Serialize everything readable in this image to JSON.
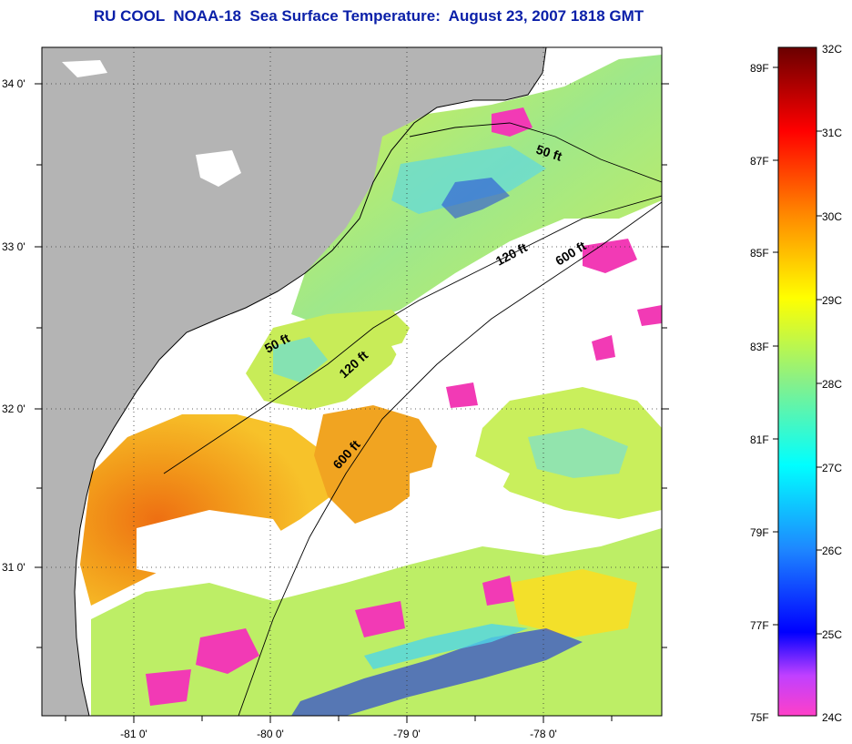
{
  "title": "RU COOL  NOAA-18  Sea Surface Temperature:  August 23, 2007 1818 GMT",
  "map": {
    "lat_ticks": [
      "34 0'",
      "33 0'",
      "32 0'",
      "31 0'"
    ],
    "lon_ticks": [
      "-81 0'",
      "-80 0'",
      "-79 0'",
      "-78 0'"
    ],
    "isobath_labels": [
      "50 ft",
      "120 ft",
      "600 ft",
      "50 ft",
      "120 ft",
      "600 ft"
    ],
    "colors": {
      "land": "#b4b4b4",
      "ocean_cloud": "#ffffff",
      "warm": "#f08a14"
    }
  },
  "colorbar": {
    "celsius_labels": [
      "32C",
      "31C",
      "30C",
      "29C",
      "28C",
      "27C",
      "26C",
      "25C",
      "24C"
    ],
    "fahrenheit_labels": [
      "89F",
      "87F",
      "85F",
      "83F",
      "81F",
      "79F",
      "77F",
      "75F"
    ]
  }
}
